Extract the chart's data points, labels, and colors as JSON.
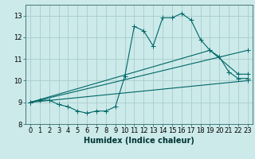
{
  "xlabel": "Humidex (Indice chaleur)",
  "bg_color": "#cceaea",
  "grid_color": "#aacccc",
  "line_color": "#006666",
  "xlim": [
    -0.5,
    23.5
  ],
  "ylim": [
    8.0,
    13.5
  ],
  "yticks": [
    8,
    9,
    10,
    11,
    12,
    13
  ],
  "xticks": [
    0,
    1,
    2,
    3,
    4,
    5,
    6,
    7,
    8,
    9,
    10,
    11,
    12,
    13,
    14,
    15,
    16,
    17,
    18,
    19,
    20,
    21,
    22,
    23
  ],
  "series1_x": [
    0,
    1,
    2,
    3,
    4,
    5,
    6,
    7,
    8,
    9,
    10,
    11,
    12,
    13,
    14,
    15,
    16,
    17,
    18,
    19,
    20,
    21,
    22,
    23
  ],
  "series1_y": [
    9.0,
    9.1,
    9.1,
    8.9,
    8.8,
    8.6,
    8.5,
    8.6,
    8.6,
    8.8,
    10.2,
    12.5,
    12.3,
    11.6,
    12.9,
    12.9,
    13.1,
    12.8,
    11.9,
    11.4,
    11.1,
    10.4,
    10.1,
    10.1
  ],
  "series2_x": [
    0,
    23
  ],
  "series2_y": [
    9.0,
    10.0
  ],
  "series3_x": [
    0,
    19,
    22,
    23
  ],
  "series3_y": [
    9.0,
    11.4,
    10.3,
    10.3
  ],
  "series4_x": [
    0,
    23
  ],
  "series4_y": [
    9.0,
    11.4
  ],
  "font_size": 6,
  "xlabel_fontsize": 7
}
